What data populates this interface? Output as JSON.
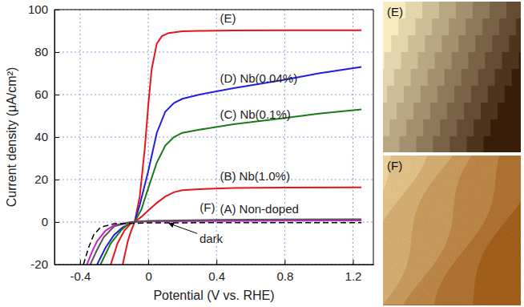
{
  "chart_data": {
    "type": "line",
    "xlabel": "Potential (V vs. RHE)",
    "ylabel": "Current density (μA/cm²)",
    "xlim": [
      -0.55,
      1.32
    ],
    "ylim": [
      -20,
      100
    ],
    "xticks": [
      -0.4,
      0,
      0.4,
      0.8,
      1.2
    ],
    "yticks": [
      -20,
      0,
      20,
      40,
      60,
      80,
      100
    ],
    "grid": true,
    "series": [
      {
        "name": "(E)",
        "color": "#e8141c",
        "x": [
          -0.15,
          -0.12,
          -0.1,
          -0.08,
          -0.05,
          -0.02,
          0,
          0.02,
          0.05,
          0.08,
          0.12,
          0.2,
          0.3,
          0.5,
          0.8,
          1.0,
          1.25
        ],
        "values": [
          -20,
          -9,
          -4,
          0,
          12,
          35,
          55,
          72,
          84,
          87.5,
          89,
          89.8,
          90,
          90.2,
          90.3,
          90.3,
          90.3
        ]
      },
      {
        "name": "(D) Nb(0.04%)",
        "color": "#1f1fe0",
        "x": [
          -0.3,
          -0.25,
          -0.2,
          -0.15,
          -0.1,
          -0.08,
          -0.05,
          0,
          0.05,
          0.1,
          0.15,
          0.2,
          0.3,
          0.5,
          0.8,
          1.0,
          1.25
        ],
        "values": [
          -20,
          -12,
          -6,
          -2.5,
          -0.5,
          0,
          8,
          24,
          42,
          52,
          56,
          58,
          60,
          63,
          67,
          70,
          73
        ]
      },
      {
        "name": "(C) Nb(0.1%)",
        "color": "#1a7a1a",
        "x": [
          -0.28,
          -0.22,
          -0.16,
          -0.12,
          -0.08,
          -0.04,
          0,
          0.05,
          0.1,
          0.15,
          0.2,
          0.3,
          0.5,
          0.8,
          1.0,
          1.25
        ],
        "values": [
          -20,
          -10,
          -4,
          -1,
          0,
          6,
          16,
          28,
          36,
          40,
          42,
          43.5,
          46,
          49,
          51,
          53
        ]
      },
      {
        "name": "(B) Nb(1.0%)",
        "color": "#e8141c",
        "x": [
          -0.22,
          -0.18,
          -0.14,
          -0.1,
          -0.08,
          -0.04,
          0,
          0.05,
          0.1,
          0.15,
          0.2,
          0.3,
          0.5,
          0.8,
          1.25
        ],
        "values": [
          -20,
          -10,
          -4,
          -0.5,
          0,
          2.5,
          5.5,
          9,
          12,
          14,
          15,
          15.5,
          16,
          16.2,
          16.3
        ]
      },
      {
        "name": "(A) Non-doped",
        "color": "#cc22cc",
        "x": [
          -0.36,
          -0.33,
          -0.3,
          -0.25,
          -0.2,
          -0.1,
          0,
          0.4,
          0.8,
          1.25
        ],
        "values": [
          -20,
          -14,
          -9,
          -4,
          -1.5,
          0,
          0.3,
          0.5,
          0.7,
          0.8
        ]
      },
      {
        "name": "(F)",
        "color": "#555555",
        "x": [
          -0.34,
          -0.3,
          -0.26,
          -0.2,
          -0.1,
          0,
          0.4,
          0.8,
          1.25
        ],
        "values": [
          -20,
          -13,
          -7,
          -2,
          0,
          0.6,
          1,
          1.2,
          1.3
        ]
      },
      {
        "color": "#000000",
        "line_style": "dashed",
        "x": [
          -0.38,
          -0.35,
          -0.32,
          -0.28,
          -0.2,
          0,
          0.4,
          0.8,
          1.25
        ],
        "values": [
          -20,
          -12,
          -6,
          -2.5,
          -0.8,
          -0.4,
          -0.3,
          -0.3,
          -0.3
        ]
      }
    ],
    "annotations": [
      {
        "text": "dark",
        "x": 0.3,
        "y": -8,
        "arrow_x": 0.12,
        "arrow_y": -0.6
      }
    ]
  },
  "images": [
    {
      "label": "(E)"
    },
    {
      "label": "(F)"
    }
  ]
}
